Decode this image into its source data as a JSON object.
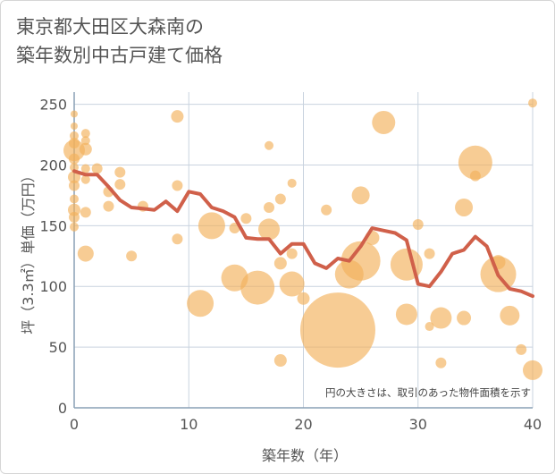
{
  "chart_data": {
    "type": "scatter",
    "title": "東京都大田区大森南の\n築年数別中古戸建て価格",
    "xlabel": "築年数（年）",
    "ylabel": "坪（3.3㎡）単価（万円）",
    "note": "円の大きさは、取引のあった物件面積を示す",
    "xlim": [
      0,
      40
    ],
    "ylim": [
      0,
      260
    ],
    "xticks": [
      0,
      10,
      20,
      30,
      40
    ],
    "yticks": [
      0,
      50,
      100,
      150,
      200,
      250
    ],
    "grid": true,
    "colors": {
      "bubble": "#f2b15a",
      "line": "#d0604a",
      "grid": "#c9d3df",
      "axis": "#8aa0b5"
    },
    "series": [
      {
        "kind": "bubble",
        "points": [
          {
            "x": 0,
            "y": 242,
            "size": 4
          },
          {
            "x": 0,
            "y": 232,
            "size": 4
          },
          {
            "x": 0,
            "y": 224,
            "size": 5
          },
          {
            "x": 0,
            "y": 218,
            "size": 6
          },
          {
            "x": 0,
            "y": 212,
            "size": 12
          },
          {
            "x": 0,
            "y": 205,
            "size": 6
          },
          {
            "x": 0,
            "y": 198,
            "size": 5
          },
          {
            "x": 0,
            "y": 190,
            "size": 7
          },
          {
            "x": 0,
            "y": 183,
            "size": 6
          },
          {
            "x": 0,
            "y": 172,
            "size": 5
          },
          {
            "x": 0,
            "y": 163,
            "size": 7
          },
          {
            "x": 0,
            "y": 157,
            "size": 6
          },
          {
            "x": 0,
            "y": 149,
            "size": 5
          },
          {
            "x": 1,
            "y": 226,
            "size": 5
          },
          {
            "x": 1,
            "y": 220,
            "size": 5
          },
          {
            "x": 1,
            "y": 213,
            "size": 7
          },
          {
            "x": 1,
            "y": 197,
            "size": 5
          },
          {
            "x": 1,
            "y": 188,
            "size": 5
          },
          {
            "x": 1,
            "y": 161,
            "size": 6
          },
          {
            "x": 1,
            "y": 127,
            "size": 9
          },
          {
            "x": 2,
            "y": 197,
            "size": 6
          },
          {
            "x": 3,
            "y": 178,
            "size": 6
          },
          {
            "x": 3,
            "y": 166,
            "size": 6
          },
          {
            "x": 4,
            "y": 194,
            "size": 6
          },
          {
            "x": 4,
            "y": 184,
            "size": 6
          },
          {
            "x": 5,
            "y": 125,
            "size": 6
          },
          {
            "x": 6,
            "y": 166,
            "size": 6
          },
          {
            "x": 9,
            "y": 240,
            "size": 7
          },
          {
            "x": 9,
            "y": 183,
            "size": 6
          },
          {
            "x": 9,
            "y": 139,
            "size": 6
          },
          {
            "x": 11,
            "y": 86,
            "size": 15
          },
          {
            "x": 12,
            "y": 150,
            "size": 15
          },
          {
            "x": 14,
            "y": 148,
            "size": 6
          },
          {
            "x": 14,
            "y": 107,
            "size": 15
          },
          {
            "x": 15,
            "y": 156,
            "size": 6
          },
          {
            "x": 16,
            "y": 99,
            "size": 19
          },
          {
            "x": 17,
            "y": 216,
            "size": 5
          },
          {
            "x": 17,
            "y": 165,
            "size": 6
          },
          {
            "x": 17,
            "y": 147,
            "size": 12
          },
          {
            "x": 18,
            "y": 172,
            "size": 6
          },
          {
            "x": 18,
            "y": 119,
            "size": 7
          },
          {
            "x": 18,
            "y": 39,
            "size": 7
          },
          {
            "x": 19,
            "y": 185,
            "size": 5
          },
          {
            "x": 19,
            "y": 127,
            "size": 6
          },
          {
            "x": 19,
            "y": 102,
            "size": 14
          },
          {
            "x": 20,
            "y": 90,
            "size": 7
          },
          {
            "x": 22,
            "y": 163,
            "size": 6
          },
          {
            "x": 23,
            "y": 64,
            "size": 42
          },
          {
            "x": 24,
            "y": 110,
            "size": 16
          },
          {
            "x": 25,
            "y": 175,
            "size": 10
          },
          {
            "x": 25,
            "y": 121,
            "size": 22
          },
          {
            "x": 26,
            "y": 140,
            "size": 8
          },
          {
            "x": 27,
            "y": 235,
            "size": 13
          },
          {
            "x": 29,
            "y": 118,
            "size": 18
          },
          {
            "x": 29,
            "y": 77,
            "size": 12
          },
          {
            "x": 30,
            "y": 151,
            "size": 6
          },
          {
            "x": 31,
            "y": 127,
            "size": 6
          },
          {
            "x": 31,
            "y": 67,
            "size": 5
          },
          {
            "x": 32,
            "y": 74,
            "size": 12
          },
          {
            "x": 32,
            "y": 37,
            "size": 6
          },
          {
            "x": 34,
            "y": 165,
            "size": 10
          },
          {
            "x": 34,
            "y": 74,
            "size": 8
          },
          {
            "x": 35,
            "y": 202,
            "size": 19
          },
          {
            "x": 35,
            "y": 191,
            "size": 6
          },
          {
            "x": 37,
            "y": 120,
            "size": 8
          },
          {
            "x": 37,
            "y": 110,
            "size": 20
          },
          {
            "x": 38,
            "y": 76,
            "size": 11
          },
          {
            "x": 39,
            "y": 48,
            "size": 6
          },
          {
            "x": 40,
            "y": 251,
            "size": 5
          },
          {
            "x": 40,
            "y": 31,
            "size": 11
          }
        ]
      },
      {
        "kind": "line",
        "x": [
          0,
          1,
          2,
          3,
          4,
          5,
          6,
          7,
          8,
          9,
          10,
          11,
          12,
          13,
          14,
          15,
          16,
          17,
          18,
          19,
          20,
          21,
          22,
          23,
          24,
          25,
          26,
          27,
          28,
          29,
          30,
          31,
          32,
          33,
          34,
          35,
          36,
          37,
          38,
          39,
          40
        ],
        "y": [
          195,
          192,
          192,
          182,
          171,
          165,
          164,
          163,
          170,
          162,
          178,
          176,
          165,
          162,
          157,
          140,
          139,
          139,
          127,
          135,
          135,
          119,
          115,
          123,
          121,
          133,
          148,
          146,
          144,
          138,
          102,
          100,
          112,
          127,
          130,
          141,
          133,
          109,
          98,
          96,
          92
        ]
      }
    ]
  }
}
